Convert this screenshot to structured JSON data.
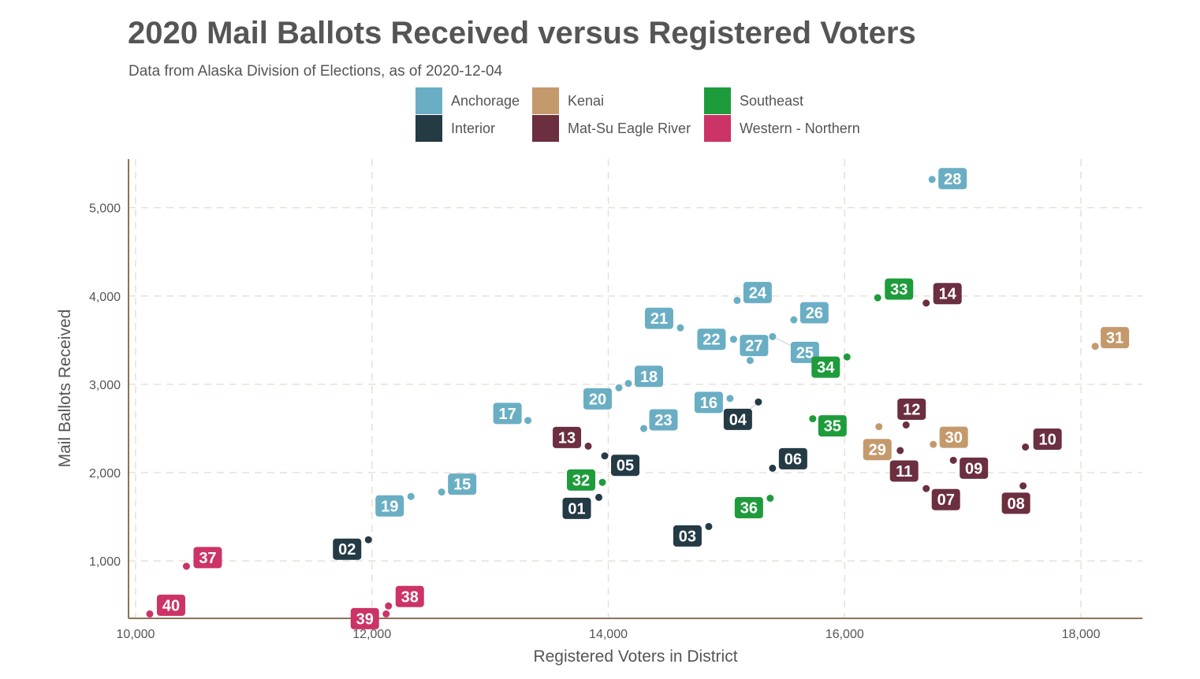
{
  "chart_data": {
    "type": "scatter",
    "title": "2020 Mail Ballots Received versus Registered Voters",
    "subtitle": "Data from Alaska Division of Elections, as of 2020-12-04",
    "xlabel": "Registered Voters in District",
    "ylabel": "Mail Ballots Received",
    "xlim": [
      9940,
      18520
    ],
    "ylim": [
      350,
      5550
    ],
    "x_ticks": [
      10000,
      12000,
      14000,
      16000,
      18000
    ],
    "x_tick_labels": [
      "10,000",
      "12,000",
      "14,000",
      "16,000",
      "18,000"
    ],
    "y_ticks": [
      1000,
      2000,
      3000,
      4000,
      5000
    ],
    "y_tick_labels": [
      "1,000",
      "2,000",
      "3,000",
      "4,000",
      "5,000"
    ],
    "grid": true,
    "legend_position": "top",
    "legend": [
      {
        "name": "Anchorage",
        "color": "#6aaec4"
      },
      {
        "name": "Kenai",
        "color": "#c49a6c"
      },
      {
        "name": "Southeast",
        "color": "#1e9c3c"
      },
      {
        "name": "Interior",
        "color": "#243a45"
      },
      {
        "name": "Mat-Su Eagle River",
        "color": "#6b2f40"
      },
      {
        "name": "Western - Northern",
        "color": "#cc3366"
      }
    ],
    "points": [
      {
        "label": "01",
        "region": "Interior",
        "x": 13920,
        "y": 1720
      },
      {
        "label": "02",
        "region": "Interior",
        "x": 11970,
        "y": 1240
      },
      {
        "label": "03",
        "region": "Interior",
        "x": 14850,
        "y": 1390
      },
      {
        "label": "04",
        "region": "Interior",
        "x": 15270,
        "y": 2800
      },
      {
        "label": "05",
        "region": "Interior",
        "x": 13970,
        "y": 2190
      },
      {
        "label": "06",
        "region": "Interior",
        "x": 15390,
        "y": 2050
      },
      {
        "label": "07",
        "region": "Mat-Su Eagle River",
        "x": 16690,
        "y": 1820
      },
      {
        "label": "08",
        "region": "Mat-Su Eagle River",
        "x": 17510,
        "y": 1850
      },
      {
        "label": "09",
        "region": "Mat-Su Eagle River",
        "x": 16920,
        "y": 2140
      },
      {
        "label": "10",
        "region": "Mat-Su Eagle River",
        "x": 17530,
        "y": 2290
      },
      {
        "label": "11",
        "region": "Mat-Su Eagle River",
        "x": 16470,
        "y": 2250
      },
      {
        "label": "12",
        "region": "Mat-Su Eagle River",
        "x": 16520,
        "y": 2540
      },
      {
        "label": "13",
        "region": "Mat-Su Eagle River",
        "x": 13830,
        "y": 2300
      },
      {
        "label": "14",
        "region": "Mat-Su Eagle River",
        "x": 16690,
        "y": 3920
      },
      {
        "label": "15",
        "region": "Anchorage",
        "x": 12590,
        "y": 1780
      },
      {
        "label": "16",
        "region": "Anchorage",
        "x": 15030,
        "y": 2840
      },
      {
        "label": "17",
        "region": "Anchorage",
        "x": 13320,
        "y": 2590
      },
      {
        "label": "18",
        "region": "Anchorage",
        "x": 14170,
        "y": 3010
      },
      {
        "label": "19",
        "region": "Anchorage",
        "x": 12330,
        "y": 1730
      },
      {
        "label": "20",
        "region": "Anchorage",
        "x": 14090,
        "y": 2960
      },
      {
        "label": "21",
        "region": "Anchorage",
        "x": 14610,
        "y": 3640
      },
      {
        "label": "22",
        "region": "Anchorage",
        "x": 15060,
        "y": 3510
      },
      {
        "label": "23",
        "region": "Anchorage",
        "x": 14300,
        "y": 2500
      },
      {
        "label": "24",
        "region": "Anchorage",
        "x": 15090,
        "y": 3950
      },
      {
        "label": "25",
        "region": "Anchorage",
        "x": 15390,
        "y": 3540
      },
      {
        "label": "26",
        "region": "Anchorage",
        "x": 15570,
        "y": 3730
      },
      {
        "label": "27",
        "region": "Anchorage",
        "x": 15200,
        "y": 3270
      },
      {
        "label": "28",
        "region": "Anchorage",
        "x": 16740,
        "y": 5320
      },
      {
        "label": "29",
        "region": "Kenai",
        "x": 16290,
        "y": 2520
      },
      {
        "label": "30",
        "region": "Kenai",
        "x": 16750,
        "y": 2320
      },
      {
        "label": "31",
        "region": "Kenai",
        "x": 18120,
        "y": 3430
      },
      {
        "label": "32",
        "region": "Southeast",
        "x": 13950,
        "y": 1890
      },
      {
        "label": "33",
        "region": "Southeast",
        "x": 16280,
        "y": 3980
      },
      {
        "label": "34",
        "region": "Southeast",
        "x": 16020,
        "y": 3310
      },
      {
        "label": "35",
        "region": "Southeast",
        "x": 15730,
        "y": 2610
      },
      {
        "label": "36",
        "region": "Southeast",
        "x": 15370,
        "y": 1710
      },
      {
        "label": "37",
        "region": "Western - Northern",
        "x": 10430,
        "y": 940
      },
      {
        "label": "38",
        "region": "Western - Northern",
        "x": 12140,
        "y": 490
      },
      {
        "label": "39",
        "region": "Western - Northern",
        "x": 12120,
        "y": 400
      },
      {
        "label": "40",
        "region": "Western - Northern",
        "x": 10120,
        "y": 400
      }
    ]
  }
}
